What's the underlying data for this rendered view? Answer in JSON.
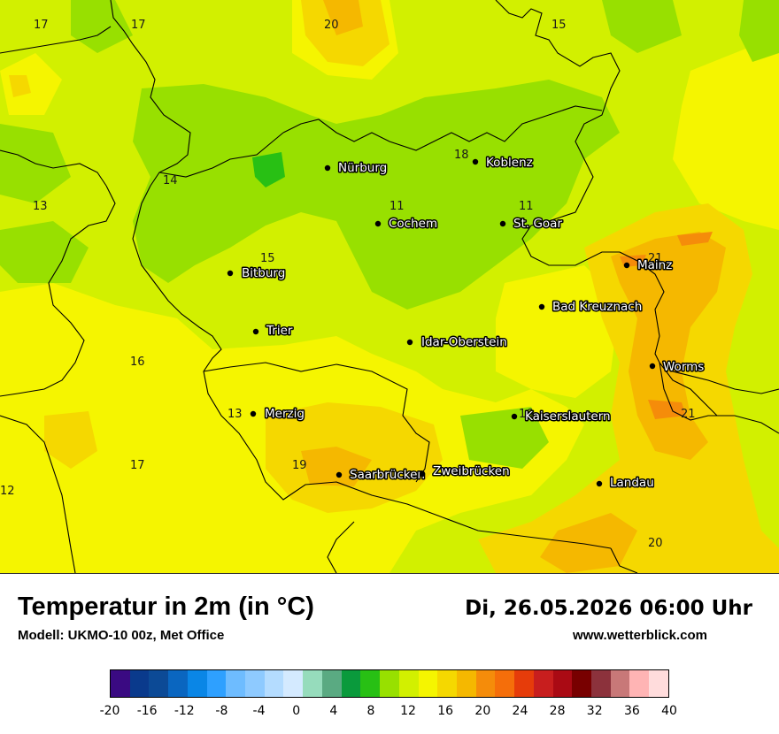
{
  "title": "Temperatur in 2m (in °C)",
  "subtitle": "Modell: UKMO-10 00z, Met Office",
  "datetime": "Di, 26.05.2026 06:00 Uhr",
  "website": "www.wetterblick.com",
  "cities": [
    {
      "id": "nuerburg",
      "name": "Nürburg"
    },
    {
      "id": "koblenz",
      "name": "Koblenz"
    },
    {
      "id": "cochem",
      "name": "Cochem"
    },
    {
      "id": "st-goar",
      "name": "St. Goar"
    },
    {
      "id": "mainz",
      "name": "Mainz"
    },
    {
      "id": "bitburg",
      "name": "Bitburg"
    },
    {
      "id": "bad-kreuznach",
      "name": "Bad Kreuznach"
    },
    {
      "id": "trier",
      "name": "Trier"
    },
    {
      "id": "idar-oberstein",
      "name": "Idar-Oberstein"
    },
    {
      "id": "worms",
      "name": "Worms"
    },
    {
      "id": "merzig",
      "name": "Merzig"
    },
    {
      "id": "kaiserslautern",
      "name": "Kaiserslautern"
    },
    {
      "id": "saarbruecken",
      "name": "Saarbrücken"
    },
    {
      "id": "zweibruecken",
      "name": "Zweibrücken"
    },
    {
      "id": "landau",
      "name": "Landau"
    }
  ],
  "temperature_labels": [
    {
      "id": "t1",
      "value": "17"
    },
    {
      "id": "t2",
      "value": "17"
    },
    {
      "id": "t3",
      "value": "20"
    },
    {
      "id": "t4",
      "value": "15"
    },
    {
      "id": "t5",
      "value": "18"
    },
    {
      "id": "t6",
      "value": "14"
    },
    {
      "id": "t7",
      "value": "13"
    },
    {
      "id": "t8",
      "value": "11"
    },
    {
      "id": "t9",
      "value": "11"
    },
    {
      "id": "t10",
      "value": "21"
    },
    {
      "id": "t11",
      "value": "15"
    },
    {
      "id": "t12",
      "value": "16"
    },
    {
      "id": "t13",
      "value": "13"
    },
    {
      "id": "t14",
      "value": "16"
    },
    {
      "id": "t15",
      "value": "21"
    },
    {
      "id": "t16",
      "value": "17"
    },
    {
      "id": "t17",
      "value": "19"
    },
    {
      "id": "t18",
      "value": "12"
    },
    {
      "id": "t19",
      "value": "20"
    }
  ],
  "legend": {
    "colors": [
      "#3a0a82",
      "#0a3a8c",
      "#0c4a96",
      "#0a66c0",
      "#0a86e6",
      "#2ea0ff",
      "#6ebcff",
      "#8ecaff",
      "#b4dcff",
      "#d4eaff",
      "#96dcbc",
      "#5aaa82",
      "#0a9a3c",
      "#28c014",
      "#98e000",
      "#d2f000",
      "#f5f500",
      "#f5d800",
      "#f5b800",
      "#f58c0a",
      "#f56e0a",
      "#e63c0a",
      "#c81e1e",
      "#aa0a14",
      "#780000",
      "#8c323c",
      "#c87878",
      "#ffb4b4",
      "#ffdcdc"
    ],
    "ticks": [
      "-20",
      "-16",
      "-12",
      "-8",
      "-4",
      "0",
      "4",
      "8",
      "12",
      "16",
      "20",
      "24",
      "28",
      "32",
      "36",
      "40"
    ]
  }
}
